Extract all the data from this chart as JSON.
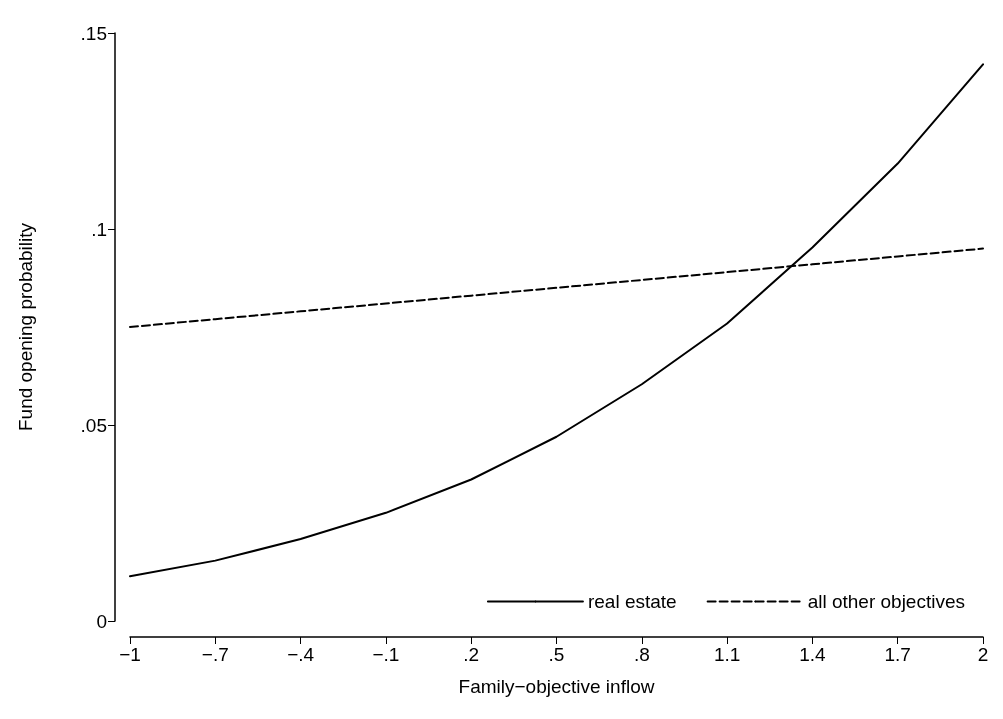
{
  "chart_data": {
    "type": "line",
    "xlabel": "Family−objective inflow",
    "ylabel": "Fund opening probability",
    "x": [
      -1,
      -0.7,
      -0.4,
      -0.1,
      0.2,
      0.5,
      0.8,
      1.1,
      1.4,
      1.7,
      2
    ],
    "series": [
      {
        "name": "real estate",
        "color": "#000000",
        "line_style": "solid",
        "values": [
          0.0114,
          0.0154,
          0.0209,
          0.0276,
          0.0361,
          0.047,
          0.0604,
          0.0759,
          0.0953,
          0.1167,
          0.142
        ]
      },
      {
        "name": "all other objectives",
        "color": "#000000",
        "line_style": "dashed",
        "values": [
          0.075,
          0.077,
          0.079,
          0.081,
          0.083,
          0.085,
          0.087,
          0.089,
          0.091,
          0.093,
          0.095
        ]
      }
    ],
    "xlim": [
      -1,
      2
    ],
    "ylim": [
      0,
      0.15
    ],
    "xticks": [
      {
        "value": -1,
        "label": "−1"
      },
      {
        "value": -0.7,
        "label": "−.7"
      },
      {
        "value": -0.4,
        "label": "−.4"
      },
      {
        "value": -0.1,
        "label": "−.1"
      },
      {
        "value": 0.2,
        "label": ".2"
      },
      {
        "value": 0.5,
        "label": ".5"
      },
      {
        "value": 0.8,
        "label": ".8"
      },
      {
        "value": 1.1,
        "label": "1.1"
      },
      {
        "value": 1.4,
        "label": "1.4"
      },
      {
        "value": 1.7,
        "label": "1.7"
      },
      {
        "value": 2,
        "label": "2"
      }
    ],
    "yticks": [
      0,
      {
        "value": 0.05,
        "label": ".05"
      },
      {
        "value": 0.1,
        "label": ".1"
      },
      {
        "value": 0.15,
        "label": ".15"
      }
    ],
    "grid": false,
    "legend": "bottom right",
    "marker": "none"
  }
}
